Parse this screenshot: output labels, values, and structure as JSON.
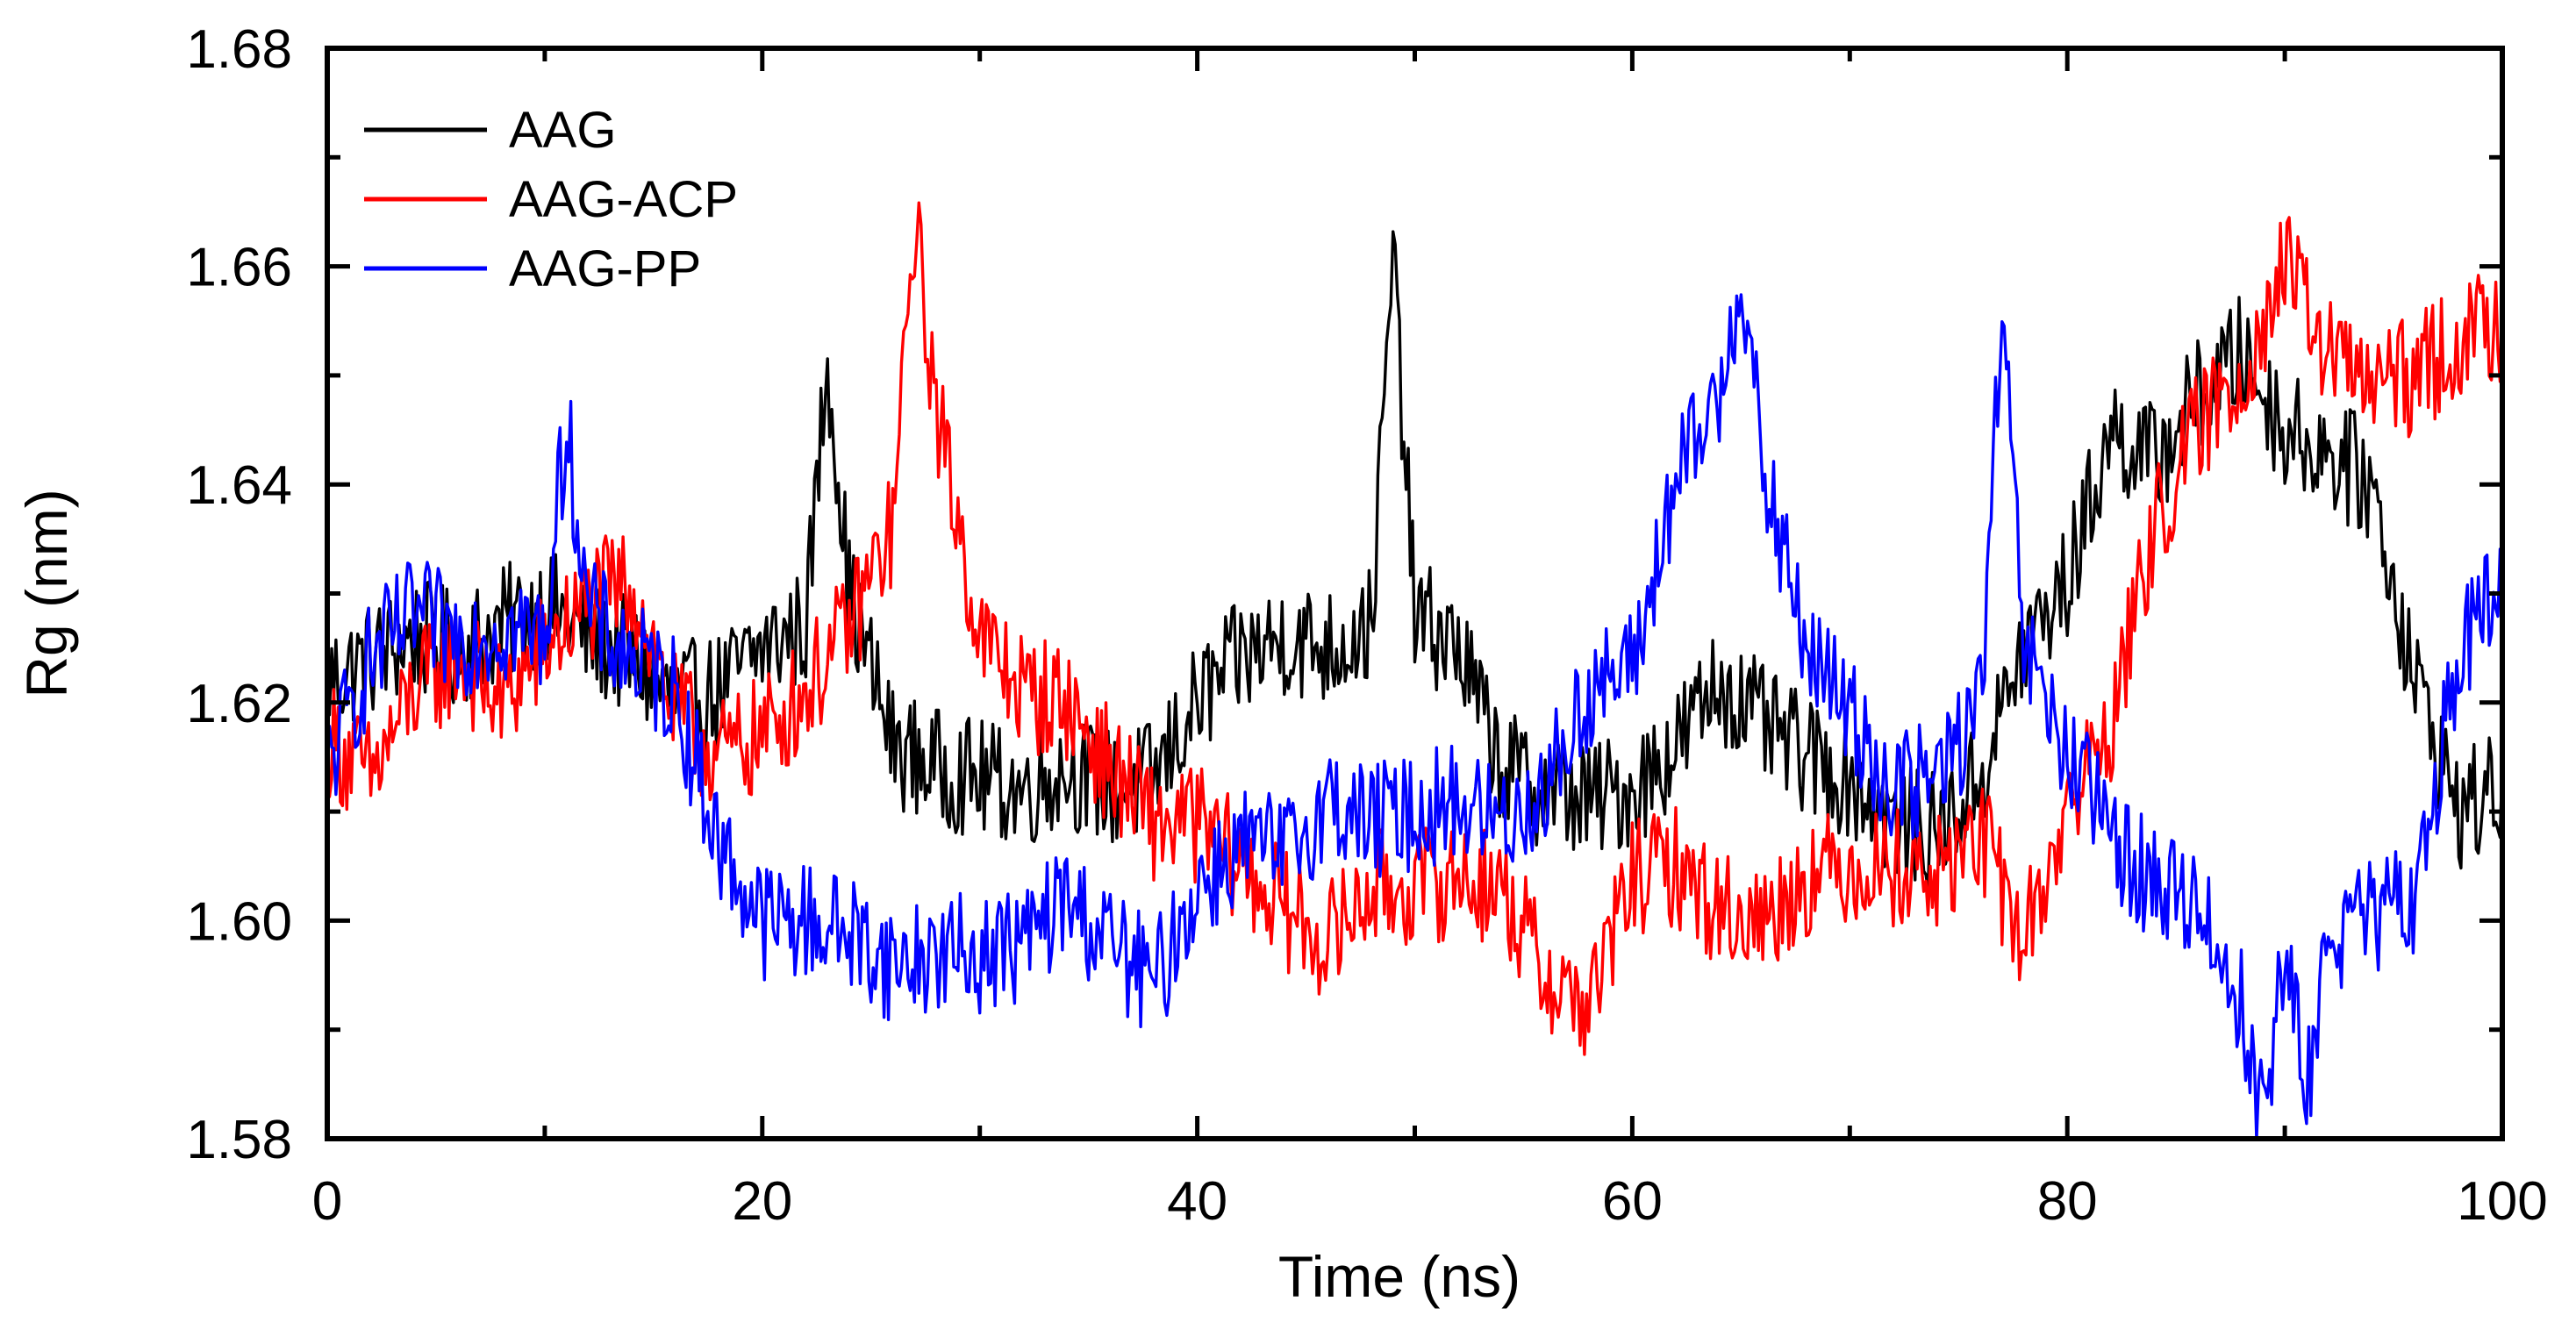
{
  "chart_data": {
    "type": "line",
    "title": "",
    "xlabel": "Time (ns)",
    "ylabel": "Rg (nm)",
    "xlim": [
      0,
      100
    ],
    "ylim": [
      1.58,
      1.68
    ],
    "x_ticks": [
      0,
      20,
      40,
      60,
      80,
      100
    ],
    "x_tick_labels": [
      "0",
      "20",
      "40",
      "60",
      "80",
      "100"
    ],
    "y_ticks": [
      1.58,
      1.6,
      1.62,
      1.64,
      1.66,
      1.68
    ],
    "y_tick_labels": [
      "1.58",
      "1.60",
      "1.62",
      "1.64",
      "1.66",
      "1.68"
    ],
    "grid": false,
    "legend_position": "top-left",
    "series": [
      {
        "name": "AAG",
        "color": "#000000",
        "x": [
          0,
          2,
          4,
          6,
          8,
          10,
          12,
          14,
          16,
          18,
          20,
          22,
          23,
          24,
          26,
          28,
          30,
          32,
          34,
          36,
          38,
          40,
          42,
          44,
          46,
          48,
          49,
          50,
          52,
          54,
          56,
          58,
          60,
          62,
          64,
          66,
          68,
          70,
          72,
          74,
          76,
          78,
          80,
          82,
          84,
          86,
          88,
          90,
          92,
          94,
          96,
          98,
          100
        ],
        "y": [
          1.622,
          1.624,
          1.626,
          1.625,
          1.627,
          1.629,
          1.626,
          1.624,
          1.62,
          1.621,
          1.625,
          1.627,
          1.652,
          1.63,
          1.616,
          1.614,
          1.613,
          1.612,
          1.614,
          1.612,
          1.613,
          1.62,
          1.624,
          1.626,
          1.625,
          1.627,
          1.661,
          1.628,
          1.625,
          1.614,
          1.612,
          1.611,
          1.612,
          1.616,
          1.622,
          1.618,
          1.615,
          1.613,
          1.609,
          1.608,
          1.613,
          1.625,
          1.631,
          1.645,
          1.642,
          1.648,
          1.652,
          1.645,
          1.643,
          1.64,
          1.622,
          1.61,
          1.612
        ]
      },
      {
        "name": "AAG-ACP",
        "color": "#ff0000",
        "x": [
          0,
          2,
          4,
          6,
          8,
          10,
          12,
          14,
          16,
          18,
          20,
          22,
          24,
          26,
          27,
          28,
          30,
          32,
          34,
          36,
          38,
          40,
          42,
          44,
          46,
          48,
          50,
          52,
          54,
          56,
          58,
          60,
          62,
          64,
          66,
          68,
          70,
          72,
          74,
          76,
          78,
          80,
          82,
          84,
          86,
          88,
          90,
          92,
          94,
          96,
          98,
          100
        ],
        "y": [
          1.617,
          1.613,
          1.621,
          1.624,
          1.62,
          1.625,
          1.629,
          1.631,
          1.619,
          1.615,
          1.617,
          1.621,
          1.627,
          1.636,
          1.664,
          1.647,
          1.626,
          1.621,
          1.62,
          1.614,
          1.609,
          1.609,
          1.605,
          1.601,
          1.598,
          1.603,
          1.603,
          1.604,
          1.603,
          1.595,
          1.592,
          1.604,
          1.605,
          1.601,
          1.6,
          1.604,
          1.605,
          1.605,
          1.604,
          1.608,
          1.598,
          1.61,
          1.618,
          1.636,
          1.645,
          1.65,
          1.66,
          1.652,
          1.649,
          1.65,
          1.653,
          1.655
        ]
      },
      {
        "name": "AAG-PP",
        "color": "#0000ff",
        "x": [
          0,
          2,
          4,
          6,
          8,
          10,
          11,
          12,
          14,
          16,
          18,
          20,
          22,
          24,
          26,
          28,
          30,
          32,
          34,
          36,
          38,
          40,
          42,
          44,
          46,
          48,
          50,
          52,
          54,
          56,
          58,
          60,
          62,
          64,
          65,
          66,
          68,
          70,
          72,
          74,
          76,
          77,
          78,
          80,
          82,
          84,
          86,
          88,
          89,
          90,
          91,
          92,
          94,
          96,
          98,
          100
        ],
        "y": [
          1.614,
          1.624,
          1.628,
          1.626,
          1.627,
          1.626,
          1.646,
          1.628,
          1.624,
          1.621,
          1.607,
          1.6,
          1.6,
          1.599,
          1.596,
          1.597,
          1.597,
          1.598,
          1.602,
          1.598,
          1.594,
          1.603,
          1.607,
          1.606,
          1.611,
          1.609,
          1.61,
          1.611,
          1.609,
          1.612,
          1.621,
          1.623,
          1.64,
          1.648,
          1.66,
          1.641,
          1.625,
          1.619,
          1.612,
          1.613,
          1.62,
          1.655,
          1.625,
          1.615,
          1.608,
          1.603,
          1.602,
          1.592,
          1.582,
          1.597,
          1.584,
          1.599,
          1.6,
          1.602,
          1.625,
          1.63
        ]
      }
    ]
  }
}
